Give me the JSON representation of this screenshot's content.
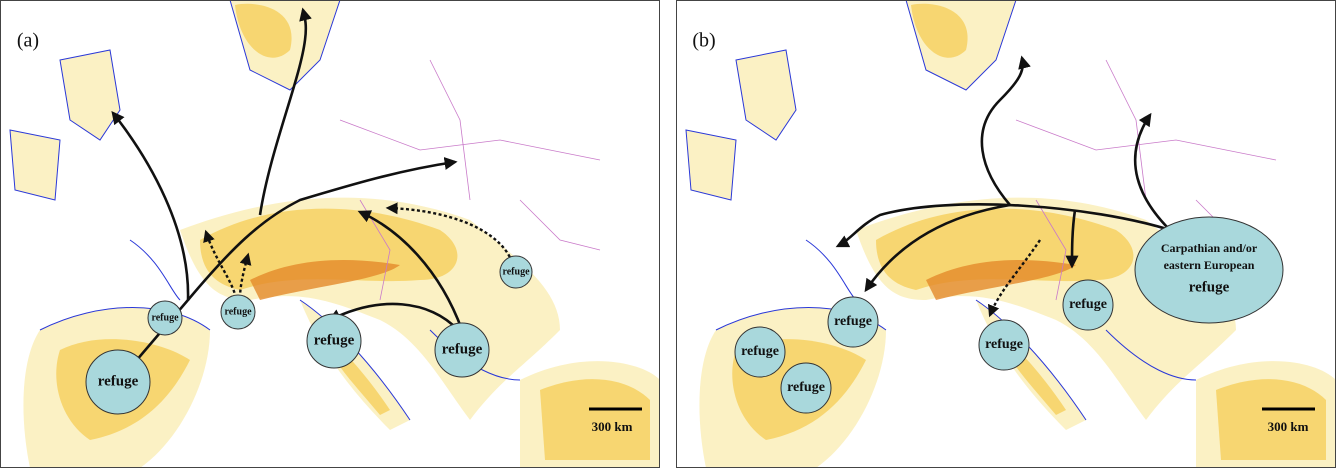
{
  "panels": [
    {
      "label": "(a)",
      "refuges": [
        "refuge",
        "refuge",
        "refuge",
        "refuge",
        "refuge",
        "refuge"
      ],
      "scale_label": "300 km"
    },
    {
      "label": "(b)",
      "refuges": [
        "refuge",
        "refuge",
        "refuge",
        "refuge",
        "refuge"
      ],
      "eastern_refuge": {
        "lines": [
          "Carpathian and/or",
          "eastern European"
        ],
        "label": "refuge"
      },
      "scale_label": "300 km"
    }
  ]
}
